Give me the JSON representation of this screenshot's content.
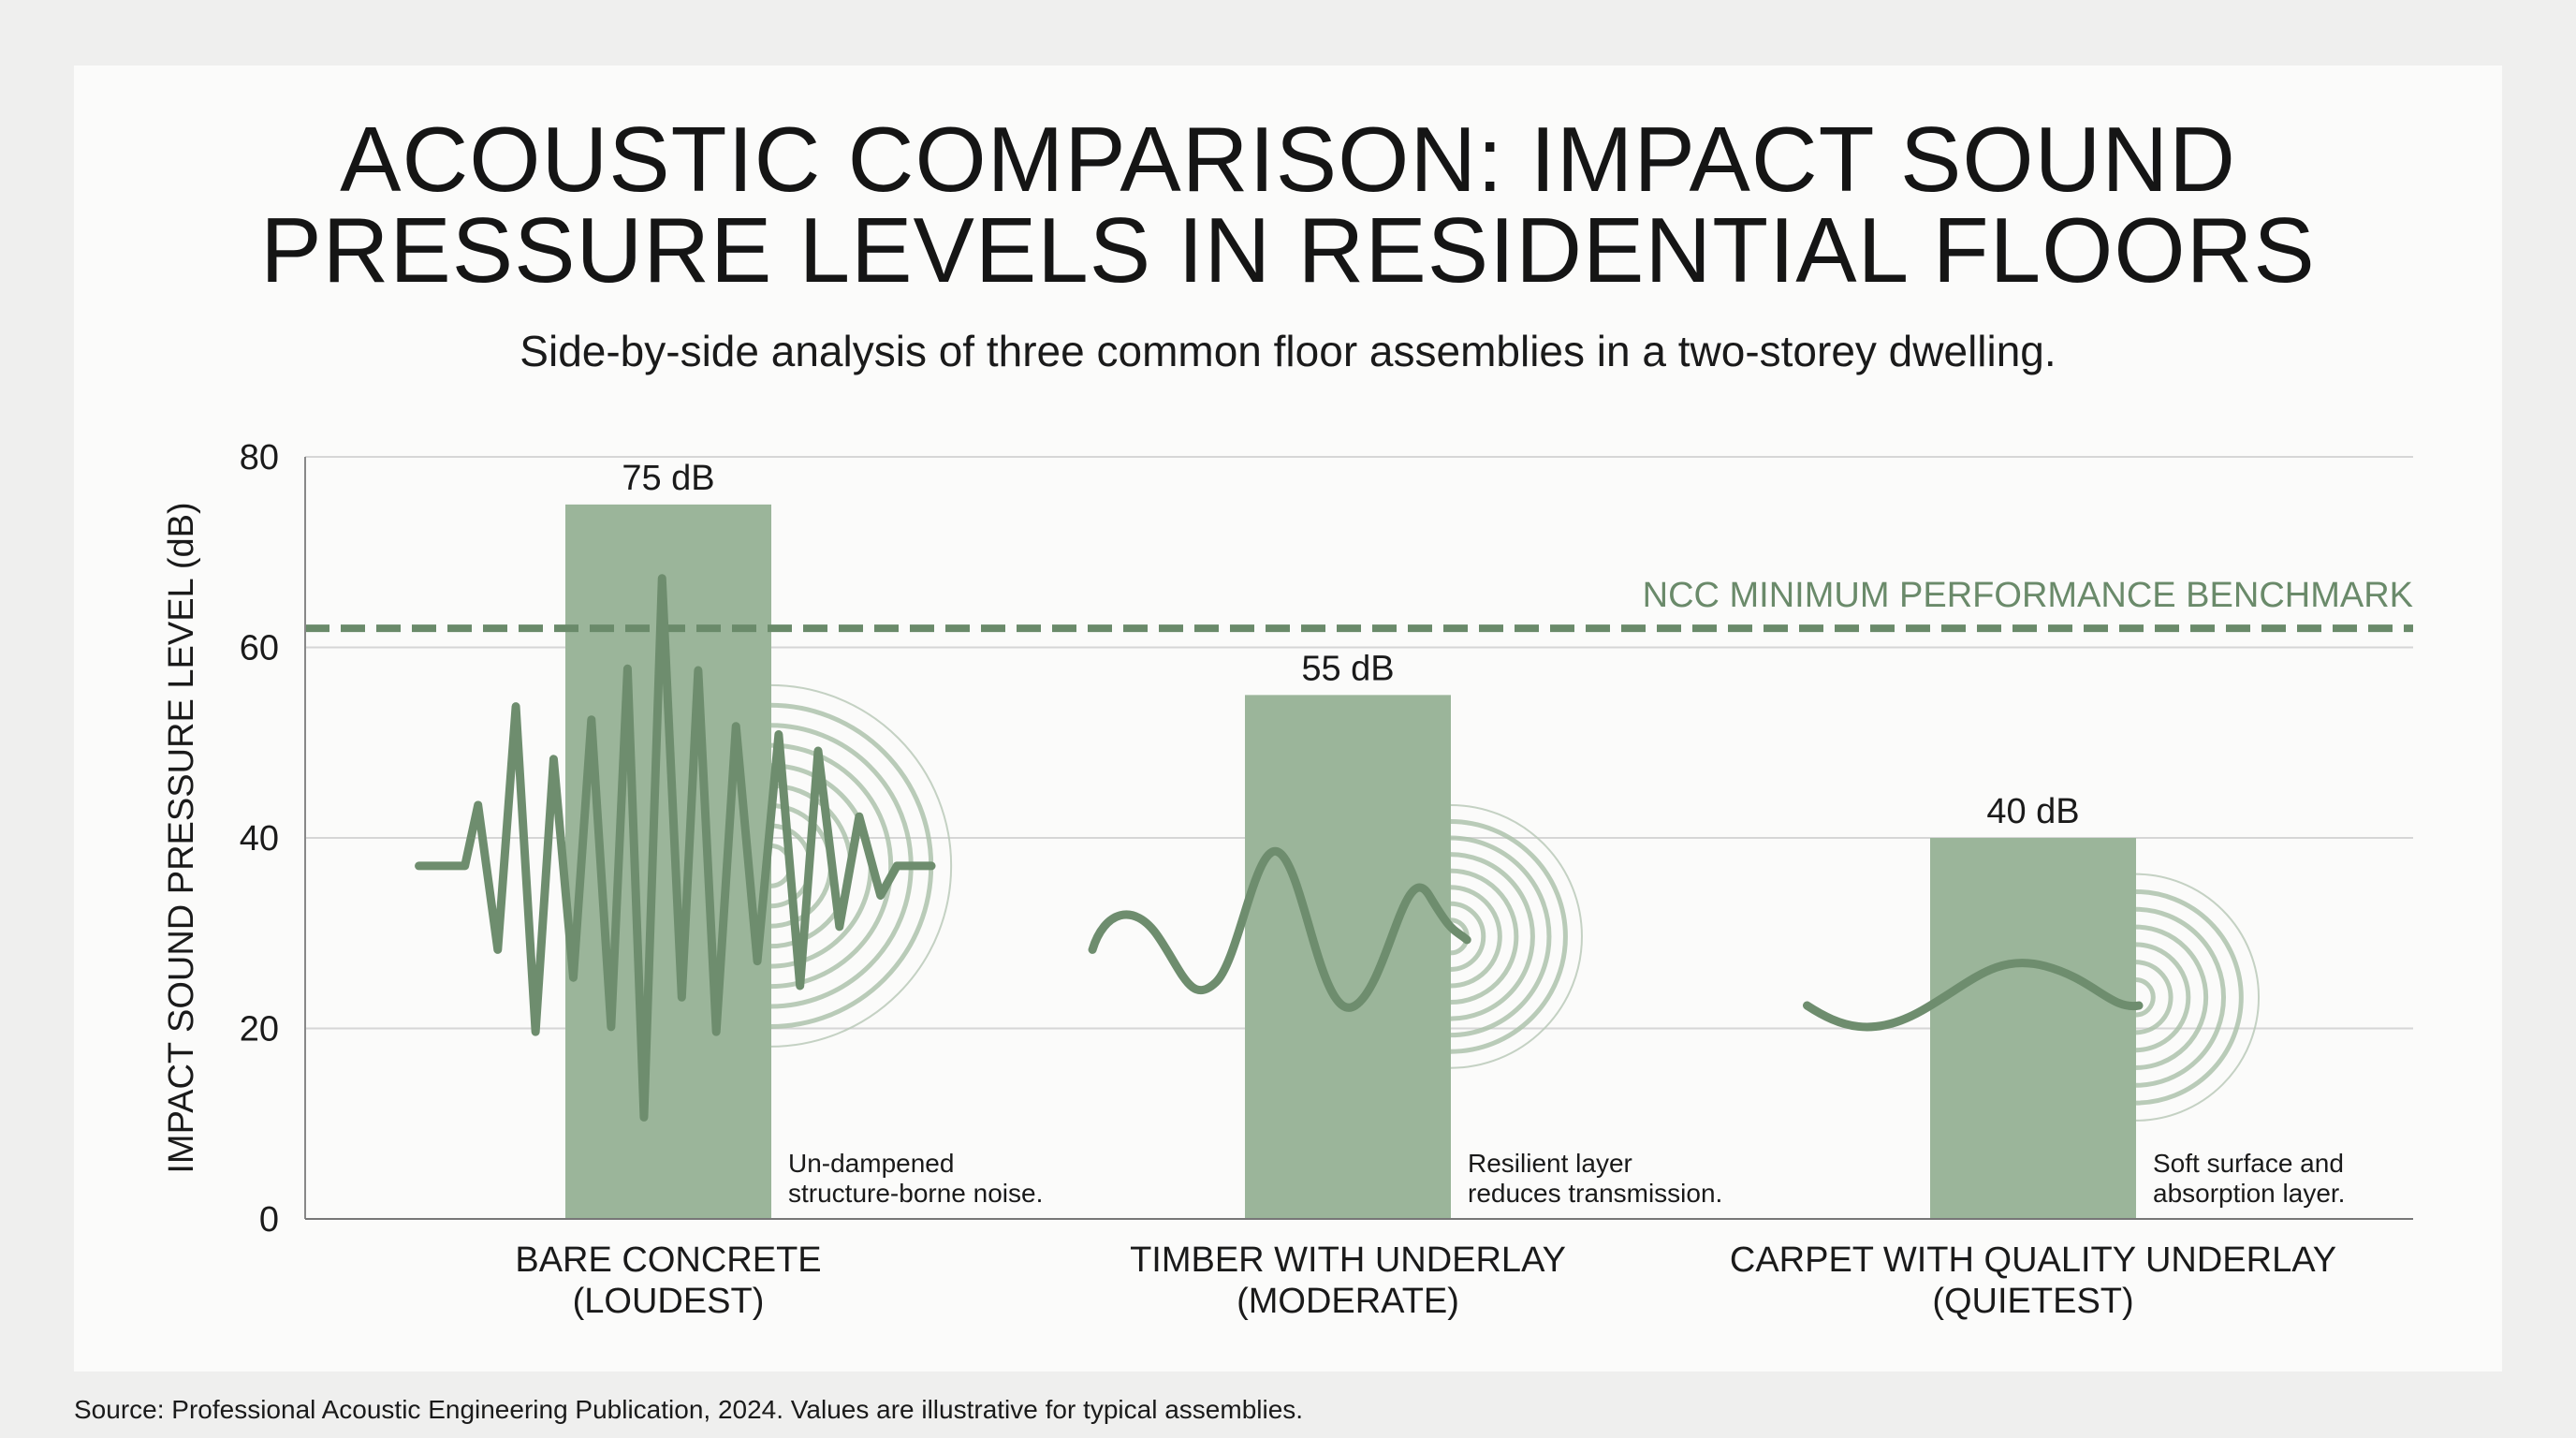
{
  "title_lines": [
    "ACOUSTIC COMPARISON: IMPACT SOUND",
    "PRESSURE LEVELS IN RESIDENTIAL FLOORS"
  ],
  "subtitle": "Side-by-side analysis of three common floor assemblies in a two-storey dwelling.",
  "footnote": "Source: Professional Acoustic Engineering Publication, 2024. Values are illustrative for typical assemblies.",
  "colors": {
    "bar": "#9bb59a",
    "wave": "#6e8d6e",
    "benchmark": "#6a8a6a",
    "grid": "#d6d6d6"
  },
  "chart_data": {
    "type": "bar",
    "title": "ACOUSTIC COMPARISON: IMPACT SOUND PRESSURE LEVELS IN RESIDENTIAL FLOORS",
    "ylabel": "IMPACT SOUND PRESSURE LEVEL (dB)",
    "xlabel": "",
    "ylim": [
      0,
      80
    ],
    "yticks": [
      "0",
      "20",
      "40",
      "60",
      "80"
    ],
    "grid": true,
    "categories": [
      {
        "line1": "BARE CONCRETE",
        "line2": "(LOUDEST)"
      },
      {
        "line1": "TIMBER WITH UNDERLAY",
        "line2": "(MODERATE)"
      },
      {
        "line1": "CARPET WITH QUALITY UNDERLAY",
        "line2": "(QUIETEST)"
      }
    ],
    "values": [
      75,
      55,
      40
    ],
    "data_labels": [
      "75 dB",
      "55 dB",
      "40 dB"
    ],
    "annotations": [
      {
        "line1": "Un-dampened",
        "line2": "structure-borne noise."
      },
      {
        "line1": "Resilient layer",
        "line2": "reduces transmission."
      },
      {
        "line1": "Soft surface and",
        "line2": "absorption layer."
      }
    ],
    "benchmark": {
      "value": 62,
      "label": "NCC MINIMUM PERFORMANCE BENCHMARK",
      "style": "dashed"
    }
  }
}
